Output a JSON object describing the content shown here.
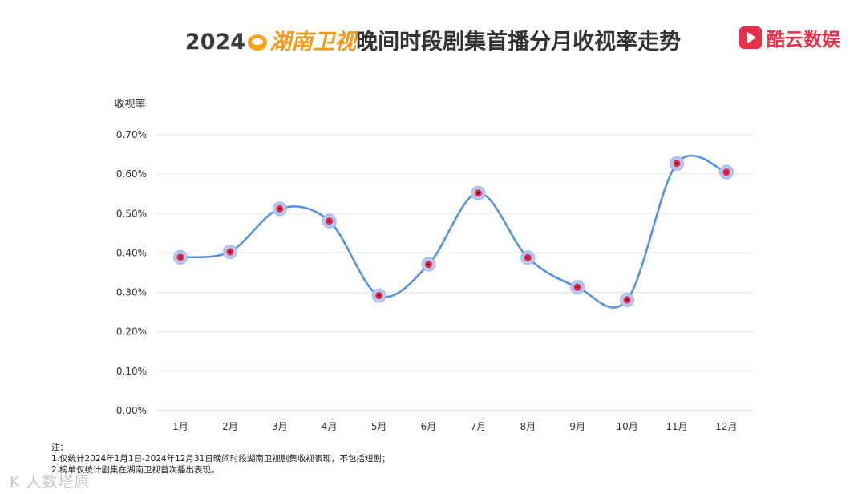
{
  "header": {
    "title_year": "2024",
    "title_channel": "湖南卫视",
    "title_rest": "晚间时段剧集首播分月收视率走势",
    "channel_logo_icon": "mango-logo-icon",
    "brand_name": "酷云数娱",
    "brand_icon": "play-logo-icon",
    "brand_color": "#e8304a"
  },
  "chart_data": {
    "type": "line",
    "ylabel": "收视率",
    "xlabel": "",
    "categories": [
      "1月",
      "2月",
      "3月",
      "4月",
      "5月",
      "6月",
      "7月",
      "8月",
      "9月",
      "10月",
      "11月",
      "12月"
    ],
    "values": [
      0.389,
      0.403,
      0.512,
      0.481,
      0.292,
      0.371,
      0.552,
      0.388,
      0.313,
      0.281,
      0.627,
      0.605
    ],
    "ylim": [
      0,
      0.7
    ],
    "yticks": [
      "0.00%",
      "0.10%",
      "0.20%",
      "0.30%",
      "0.40%",
      "0.50%",
      "0.60%",
      "0.70%"
    ],
    "grid": true,
    "line_color": "#5b8fe0",
    "marker_color": "#e0284a",
    "smooth": true
  },
  "notes": {
    "heading": "注：",
    "line1": "1.仅统计2024年1月1日-2024年12月31日晚间时段湖南卫视剧集收视表现，不包括短剧；",
    "line2": "2.榜单仅统计剧集在湖南卫视首次播出表现。"
  },
  "watermark": "K 人数塔原"
}
